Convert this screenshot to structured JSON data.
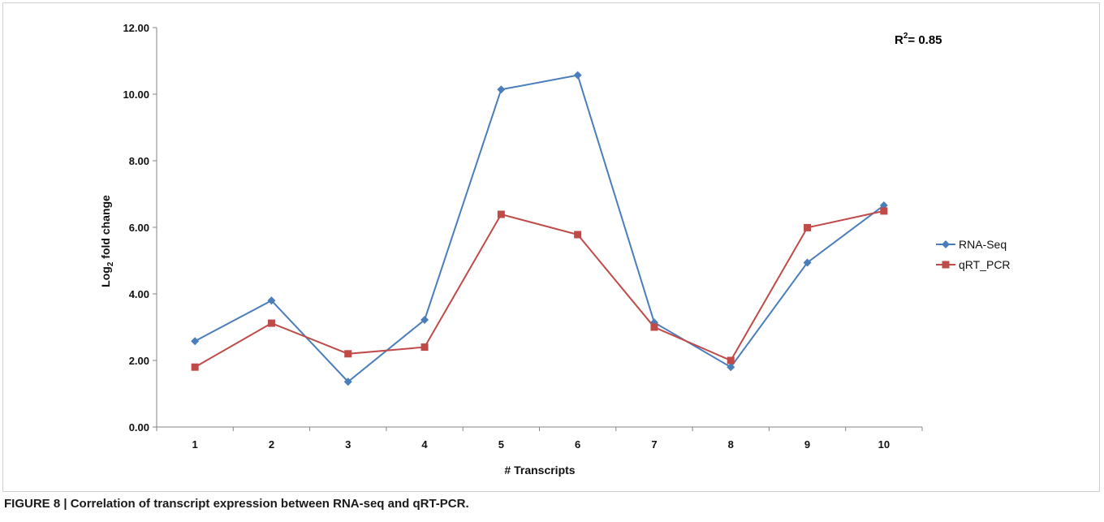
{
  "caption": "FIGURE 8 | Correlation of transcript expression between RNA-seq and qRT-PCR.",
  "chart_data": {
    "type": "line",
    "title": "",
    "xlabel": "# Transcripts",
    "ylabel_main": "Log",
    "ylabel_sub": "2",
    "ylabel_rest": " fold change",
    "categories": [
      "1",
      "2",
      "3",
      "4",
      "5",
      "6",
      "7",
      "8",
      "9",
      "10"
    ],
    "ylim": [
      0,
      12
    ],
    "yticks": [
      "0.00",
      "2.00",
      "4.00",
      "6.00",
      "8.00",
      "10.00",
      "12.00"
    ],
    "grid": false,
    "legend_position": "right",
    "annotation": {
      "text": "R",
      "sup": "2",
      "rest": "= 0.85"
    },
    "series": [
      {
        "name": "RNA-Seq",
        "color": "#4a7ebb",
        "marker": "diamond",
        "values": [
          2.58,
          3.8,
          1.36,
          3.22,
          10.14,
          10.57,
          3.14,
          1.8,
          4.94,
          6.66
        ]
      },
      {
        "name": "qRT_PCR",
        "color": "#be4b48",
        "marker": "square",
        "values": [
          1.8,
          3.12,
          2.2,
          2.4,
          6.39,
          5.78,
          3.0,
          2.0,
          5.99,
          6.49
        ]
      }
    ]
  }
}
